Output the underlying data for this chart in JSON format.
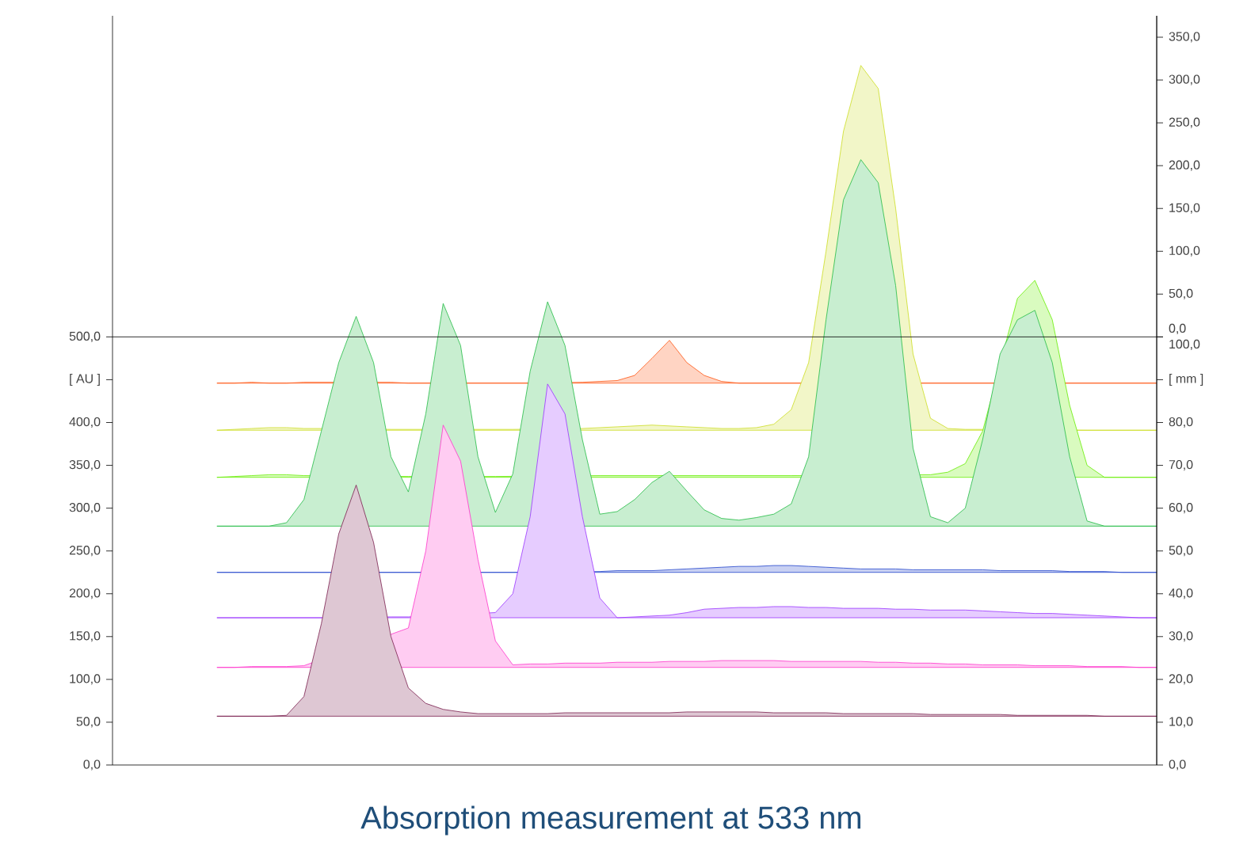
{
  "chart_data": {
    "type": "area",
    "title": "Absorption measurement at 533 nm",
    "categories": [
      null,
      null,
      null,
      null,
      null,
      null,
      null,
      null,
      null,
      null,
      null,
      null,
      null,
      null,
      null,
      null,
      null,
      null,
      null,
      null,
      null,
      null,
      null,
      null,
      null,
      null,
      null,
      null,
      null,
      null,
      null,
      null,
      null,
      null,
      null,
      null,
      null,
      null,
      null,
      null,
      null,
      null,
      null,
      null,
      null,
      null,
      null,
      null,
      null,
      null,
      null,
      null,
      null,
      null,
      null
    ],
    "ylim": [
      0,
      875
    ],
    "yticks": [
      {
        "value": 0,
        "label": "0,0"
      },
      {
        "value": 50,
        "label": "50,0"
      },
      {
        "value": 100,
        "label": "100,0"
      },
      {
        "value": 150,
        "label": "150,0"
      },
      {
        "value": 200,
        "label": "200,0"
      },
      {
        "value": 250,
        "label": "250,0"
      },
      {
        "value": 300,
        "label": "300,0"
      },
      {
        "value": 350,
        "label": "350,0"
      },
      {
        "value": 400,
        "label": "400,0"
      },
      {
        "value": 450,
        "label": "[ AU ]"
      },
      {
        "value": 500,
        "label": "500,0"
      }
    ],
    "y2lim": [
      0,
      175
    ],
    "y2ticks": [
      {
        "value": 0,
        "label": "0,0"
      },
      {
        "value": 10,
        "label": "10,0"
      },
      {
        "value": 20,
        "label": "20,0"
      },
      {
        "value": 30,
        "label": "30,0"
      },
      {
        "value": 40,
        "label": "40,0"
      },
      {
        "value": 50,
        "label": "50,0"
      },
      {
        "value": 60,
        "label": "60,0"
      },
      {
        "value": 70,
        "label": "70,0"
      },
      {
        "value": 80,
        "label": "80,0"
      },
      {
        "value": 90,
        "label": "[ mm ]"
      },
      {
        "value": 100,
        "label": "100,0"
      }
    ],
    "y3lim": [
      -500,
      375
    ],
    "y3ticks": [
      {
        "value": 0,
        "label": "0,0"
      },
      {
        "value": 50,
        "label": "50,0"
      },
      {
        "value": 100,
        "label": "100,0"
      },
      {
        "value": 150,
        "label": "150,0"
      },
      {
        "value": 200,
        "label": "200,0"
      },
      {
        "value": 250,
        "label": "250,0"
      },
      {
        "value": 300,
        "label": "300,0"
      },
      {
        "value": 350,
        "label": "350,0"
      }
    ],
    "ref_lines": [
      {
        "axis": "y",
        "value": 500,
        "color": "#000000"
      }
    ],
    "series": [
      {
        "color": "#ff5511",
        "values": [
          446,
          446,
          447,
          446,
          446,
          447,
          447,
          null,
          null,
          null,
          447,
          446,
          446,
          null,
          null,
          446,
          446,
          446,
          446,
          null,
          null,
          447,
          448,
          449,
          455,
          475,
          496,
          470,
          455,
          448,
          446,
          446,
          446,
          446,
          null,
          null,
          null,
          null,
          null,
          null,
          null,
          446,
          446,
          446,
          446,
          null,
          null,
          null,
          null,
          446,
          446,
          446,
          446,
          446,
          446
        ]
      },
      {
        "color": "#ccdd22",
        "values": [
          391,
          392,
          393,
          394,
          394,
          393,
          393,
          null,
          null,
          null,
          392,
          392,
          null,
          null,
          null,
          392,
          392,
          392,
          null,
          null,
          null,
          393,
          394,
          395,
          396,
          397,
          396,
          395,
          394,
          393,
          393,
          394,
          398,
          415,
          470,
          600,
          740,
          817,
          790,
          650,
          480,
          405,
          393,
          392,
          392,
          null,
          null,
          null,
          null,
          null,
          391,
          391,
          391,
          391,
          391
        ]
      },
      {
        "color": "#66ee00",
        "values": [
          336,
          337,
          338,
          339,
          339,
          338,
          null,
          null,
          null,
          null,
          null,
          337,
          null,
          null,
          null,
          null,
          337,
          null,
          null,
          null,
          null,
          null,
          338,
          338,
          338,
          338,
          null,
          338,
          338,
          338,
          338,
          338,
          338,
          338,
          null,
          null,
          null,
          null,
          null,
          null,
          null,
          339,
          342,
          352,
          390,
          null,
          545,
          566,
          520,
          420,
          350,
          336,
          336,
          336,
          336
        ]
      },
      {
        "color": "#22bb44",
        "values": [
          279,
          279,
          279,
          279,
          283,
          310,
          390,
          470,
          524,
          470,
          360,
          319,
          410,
          539,
          490,
          360,
          295,
          340,
          460,
          541,
          490,
          380,
          293,
          296,
          310,
          330,
          343,
          320,
          298,
          288,
          286,
          289,
          293,
          305,
          360,
          520,
          660,
          707,
          680,
          560,
          370,
          290,
          283,
          300,
          380,
          480,
          520,
          531,
          470,
          360,
          285,
          279,
          279,
          279,
          279
        ]
      },
      {
        "color": "#2244cc",
        "values": [
          225,
          225,
          225,
          225,
          225,
          225,
          225,
          null,
          null,
          null,
          225,
          225,
          null,
          null,
          null,
          null,
          225,
          225,
          null,
          null,
          null,
          null,
          226,
          227,
          227,
          227,
          228,
          229,
          230,
          231,
          232,
          232,
          233,
          233,
          232,
          231,
          230,
          229,
          229,
          229,
          228,
          228,
          228,
          228,
          228,
          227,
          227,
          227,
          227,
          226,
          226,
          226,
          225,
          225,
          225
        ]
      },
      {
        "color": "#9933ff",
        "values": [
          172,
          172,
          172,
          172,
          172,
          172,
          172,
          null,
          null,
          null,
          173,
          173,
          null,
          null,
          null,
          null,
          178,
          200,
          290,
          445,
          410,
          290,
          195,
          172,
          173,
          174,
          175,
          178,
          182,
          183,
          184,
          184,
          185,
          185,
          184,
          184,
          183,
          183,
          183,
          182,
          182,
          181,
          181,
          181,
          180,
          179,
          178,
          177,
          177,
          176,
          175,
          174,
          173,
          172,
          172
        ]
      },
      {
        "color": "#ff33cc",
        "values": [
          114,
          114,
          115,
          115,
          115,
          116,
          null,
          null,
          null,
          null,
          null,
          160,
          250,
          397,
          355,
          240,
          145,
          117,
          118,
          118,
          119,
          119,
          119,
          120,
          120,
          120,
          121,
          121,
          121,
          122,
          122,
          122,
          122,
          121,
          121,
          121,
          121,
          121,
          120,
          120,
          119,
          119,
          118,
          118,
          117,
          117,
          117,
          116,
          116,
          116,
          115,
          115,
          115,
          114,
          114
        ]
      },
      {
        "color": "#7a1e4e",
        "values": [
          57,
          57,
          57,
          57,
          58,
          80,
          165,
          270,
          327,
          260,
          150,
          90,
          72,
          65,
          62,
          60,
          60,
          60,
          60,
          60,
          61,
          61,
          61,
          61,
          61,
          61,
          61,
          62,
          62,
          62,
          62,
          62,
          61,
          61,
          61,
          61,
          60,
          60,
          60,
          60,
          60,
          59,
          59,
          59,
          59,
          59,
          58,
          58,
          58,
          58,
          58,
          57,
          57,
          57,
          57
        ]
      }
    ]
  }
}
